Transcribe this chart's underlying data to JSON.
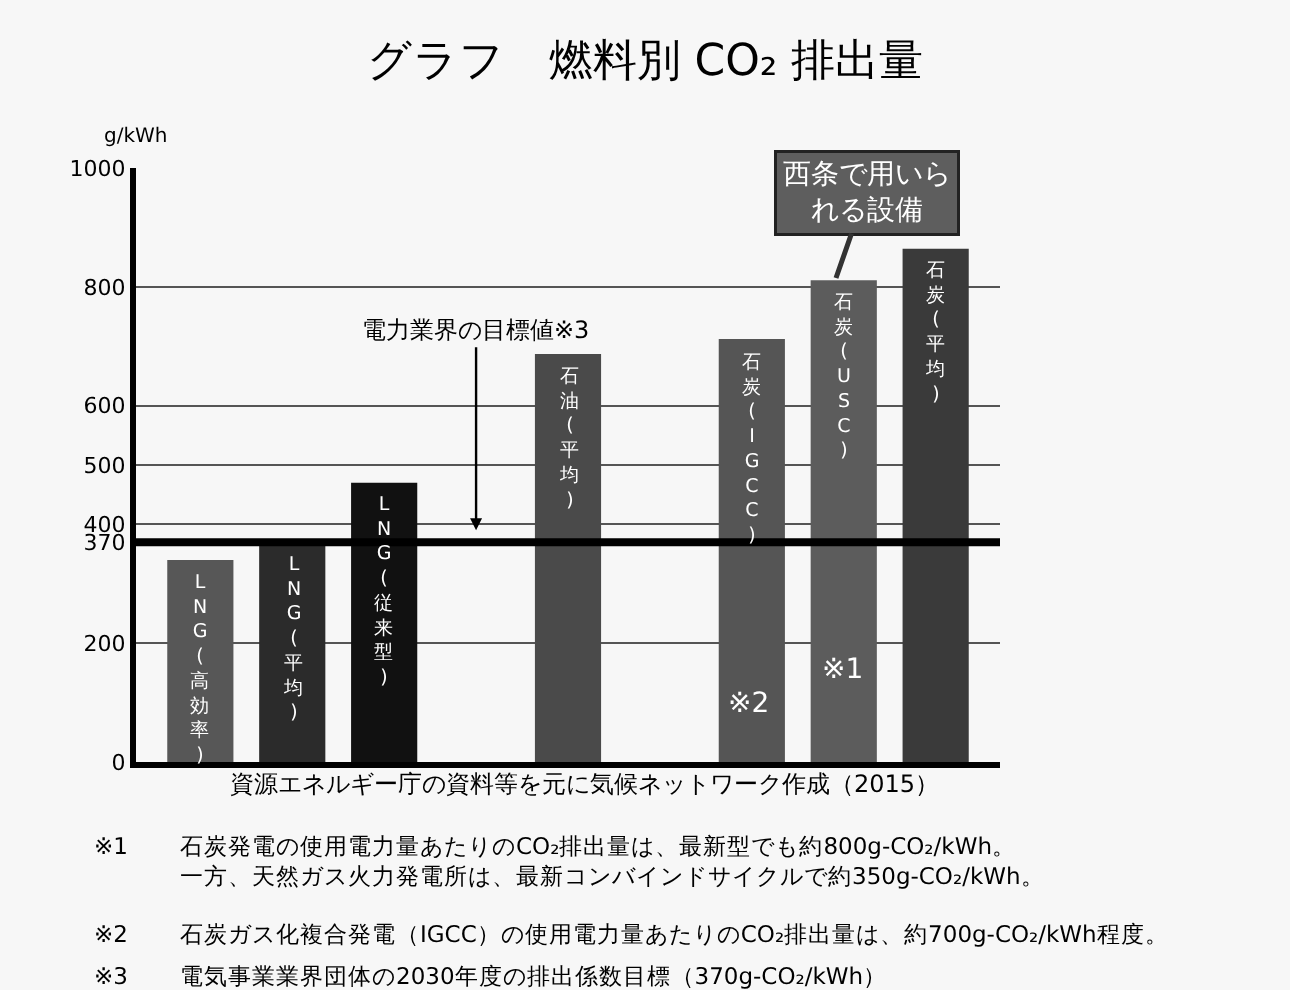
{
  "chart_data": {
    "type": "bar",
    "title": "グラフ　燃料別 CO₂ 排出量",
    "ylabel": "g/kWh",
    "categories": [
      "LNG(高効率)",
      "LNG(平均)",
      "LNG(従来型)",
      null,
      "石油(平均)",
      null,
      "石炭(IGCC)",
      "石炭(USC)",
      "石炭(平均)"
    ],
    "values": [
      340,
      371,
      470,
      null,
      687,
      null,
      712,
      811,
      864
    ],
    "colors": [
      "#575757",
      "#2b2b2b",
      "#111111",
      "#000000",
      "#4a4a4a",
      "#000000",
      "#555555",
      "#5c5c5c",
      "#3a3a3a"
    ],
    "ylim": [
      0,
      1000
    ],
    "yticks": [
      0,
      200,
      370,
      400,
      500,
      600,
      800,
      1000
    ],
    "grid": "y",
    "ref_lines": [
      {
        "axis": "y",
        "value": 370,
        "label": "電力業界の目標値※3",
        "color": "#000000"
      }
    ],
    "annotations": [
      "※2",
      "※1",
      "西条で用いられる設備",
      "資源エネルギー庁の資料等を元に気候ネットワーク作成（2015）",
      "※1 石炭発電の使用電力量あたりのCO₂排出量は、最新型でも約800g-CO₂/kWh。一方、天然ガス火力発電所は、最新コンバインドサイクルで約350g-CO₂/kWh。",
      "※2 石炭ガス化複合発電（IGCC）の使用電力量あたりのCO₂排出量は、約700g-CO₂/kWh程度。",
      "※3 電気事業業界団体の2030年度の排出係数目標（370g-CO₂/kWh）"
    ]
  }
}
